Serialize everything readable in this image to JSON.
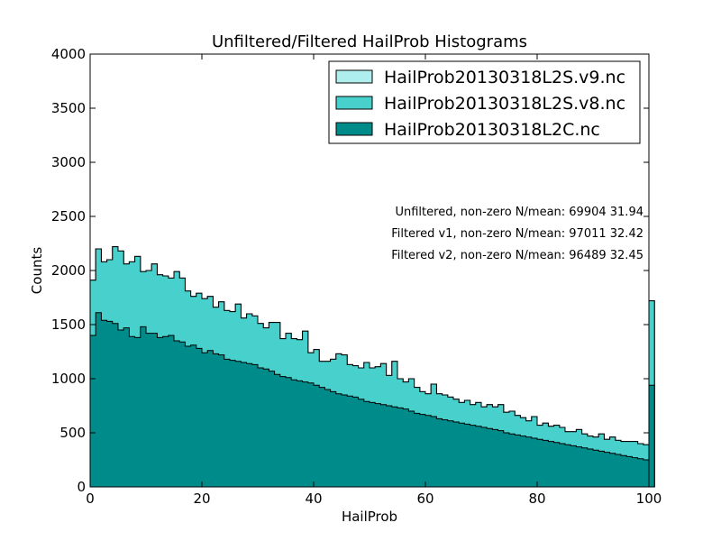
{
  "chart_data": {
    "type": "histogram",
    "title": "Unfiltered/Filtered HailProb Histograms",
    "xlabel": "HailProb",
    "ylabel": "Counts",
    "xlim": [
      0,
      100
    ],
    "ylim": [
      0,
      4000
    ],
    "xticks": [
      0,
      20,
      40,
      60,
      80,
      100
    ],
    "yticks": [
      0,
      500,
      1000,
      1500,
      2000,
      2500,
      3000,
      3500,
      4000
    ],
    "bin_width": 1,
    "grid": false,
    "legend_position": "top-right",
    "series": [
      {
        "name": "HailProb20130318L2S.v9.nc",
        "color": "#afeeee",
        "values": [
          1910,
          2200,
          2080,
          2100,
          2220,
          2180,
          2060,
          2080,
          2130,
          1990,
          2000,
          2060,
          1960,
          1950,
          1930,
          1990,
          1930,
          1810,
          1760,
          1790,
          1740,
          1760,
          1660,
          1710,
          1630,
          1620,
          1690,
          1560,
          1600,
          1580,
          1510,
          1470,
          1520,
          1520,
          1370,
          1420,
          1370,
          1360,
          1440,
          1240,
          1270,
          1160,
          1160,
          1180,
          1230,
          1220,
          1130,
          1120,
          1100,
          1150,
          1100,
          1110,
          1140,
          1030,
          1160,
          1000,
          970,
          1000,
          920,
          880,
          860,
          950,
          860,
          850,
          830,
          810,
          780,
          800,
          760,
          780,
          740,
          760,
          740,
          760,
          690,
          700,
          660,
          640,
          610,
          650,
          570,
          590,
          560,
          570,
          550,
          510,
          510,
          530,
          490,
          470,
          460,
          490,
          440,
          460,
          430,
          420,
          420,
          420,
          400,
          390,
          1720
        ]
      },
      {
        "name": "HailProb20130318L2S.v8.nc",
        "color": "#48d1cc",
        "values": [
          1910,
          2200,
          2080,
          2100,
          2220,
          2180,
          2060,
          2080,
          2130,
          1990,
          2000,
          2060,
          1960,
          1950,
          1930,
          1990,
          1930,
          1810,
          1760,
          1790,
          1740,
          1760,
          1660,
          1710,
          1630,
          1620,
          1690,
          1560,
          1600,
          1580,
          1510,
          1470,
          1520,
          1520,
          1370,
          1420,
          1370,
          1360,
          1440,
          1240,
          1270,
          1160,
          1160,
          1180,
          1230,
          1220,
          1130,
          1120,
          1100,
          1150,
          1100,
          1110,
          1140,
          1030,
          1160,
          1000,
          970,
          1000,
          920,
          880,
          860,
          950,
          860,
          850,
          830,
          810,
          780,
          800,
          760,
          780,
          740,
          760,
          740,
          760,
          690,
          700,
          660,
          640,
          610,
          650,
          570,
          590,
          560,
          570,
          550,
          510,
          510,
          530,
          490,
          470,
          460,
          490,
          440,
          460,
          430,
          420,
          420,
          420,
          400,
          390,
          1720
        ]
      },
      {
        "name": "HailProb20130318L2C.nc",
        "color": "#008b8b",
        "values": [
          1400,
          1610,
          1540,
          1530,
          1510,
          1450,
          1470,
          1390,
          1380,
          1480,
          1420,
          1420,
          1380,
          1390,
          1400,
          1350,
          1340,
          1300,
          1310,
          1280,
          1240,
          1260,
          1230,
          1220,
          1180,
          1170,
          1160,
          1150,
          1140,
          1130,
          1100,
          1090,
          1070,
          1040,
          1020,
          1010,
          990,
          980,
          970,
          960,
          940,
          920,
          900,
          880,
          860,
          850,
          840,
          830,
          810,
          790,
          780,
          770,
          760,
          750,
          740,
          730,
          720,
          700,
          680,
          670,
          660,
          650,
          630,
          620,
          610,
          600,
          590,
          580,
          570,
          560,
          550,
          540,
          530,
          520,
          500,
          490,
          480,
          470,
          460,
          450,
          440,
          430,
          420,
          410,
          400,
          390,
          380,
          370,
          360,
          350,
          340,
          330,
          320,
          310,
          300,
          290,
          280,
          270,
          260,
          250,
          940
        ]
      }
    ],
    "annotations": [
      "Unfiltered, non-zero N/mean: 69904 31.94",
      "Filtered v1, non-zero N/mean: 97011 32.42",
      "Filtered v2, non-zero N/mean: 96489 32.45"
    ]
  }
}
